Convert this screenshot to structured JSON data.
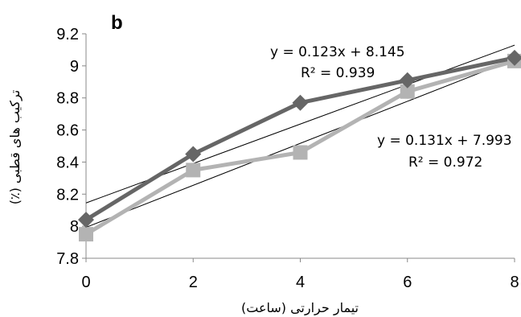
{
  "chart_data": {
    "type": "line",
    "panel_label": "b",
    "xlabel": "تیمار حرارتی (ساعت)",
    "ylabel": "ترکیب های قطبی (٪)",
    "xlim": [
      0,
      8
    ],
    "ylim": [
      7.8,
      9.2
    ],
    "x_ticks": [
      "0",
      "2",
      "4",
      "6",
      "8"
    ],
    "y_ticks": [
      "7.8",
      "8",
      "8.2",
      "8.4",
      "8.6",
      "8.8",
      "9",
      "9.2"
    ],
    "grid": false,
    "x": [
      0,
      2,
      4,
      6,
      8
    ],
    "series": [
      {
        "marker": "diamond",
        "color": "#666666",
        "values": [
          8.04,
          8.45,
          8.77,
          8.91,
          9.05
        ]
      },
      {
        "marker": "square",
        "color": "#b3b3b3",
        "values": [
          7.95,
          8.35,
          8.46,
          8.84,
          9.03
        ]
      }
    ],
    "trendlines": [
      {
        "slope": 0.123,
        "intercept": 8.145
      },
      {
        "slope": 0.131,
        "intercept": 7.993
      }
    ],
    "annotations": [
      {
        "equation": "y = 0.123x + 8.145",
        "r2": "R² = 0.939"
      },
      {
        "equation": "y = 0.131x + 7.993",
        "r2": "R² = 0.972"
      }
    ]
  }
}
